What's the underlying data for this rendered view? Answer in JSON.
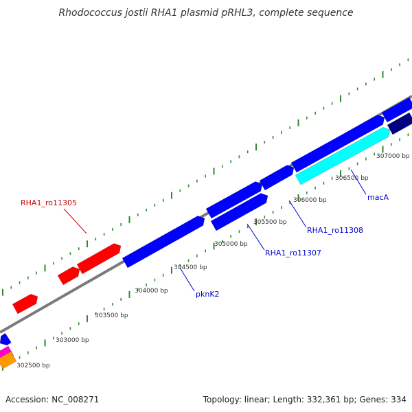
{
  "title": "Rhodococcus jostii RHA1 plasmid pRHL3, complete sequence",
  "footer": {
    "accession": "Accession: NC_008271",
    "summary": "Topology: linear; Length: 332,361 bp; Genes: 334"
  },
  "colors": {
    "backbone": "#7a7a7a",
    "tick": "#2e8b2e",
    "forward_gene": "#ff0000",
    "reverse_gene": "#0000ff",
    "highlight_gene": "#00ffff",
    "dark_gene": "#000080",
    "magenta_gene": "#ff00cc",
    "orange_gene": "#ff9900",
    "red_label": "#cc0000",
    "blue_label": "#0000cc"
  },
  "ticks": [
    {
      "label": "302500 bp"
    },
    {
      "label": "303000 bp"
    },
    {
      "label": "303500 bp"
    },
    {
      "label": "304000 bp"
    },
    {
      "label": "304500 bp"
    },
    {
      "label": "305000 bp"
    },
    {
      "label": "305500 bp"
    },
    {
      "label": "306000 bp"
    },
    {
      "label": "306500 bp"
    },
    {
      "label": "307000 bp"
    }
  ],
  "gene_labels": [
    {
      "name": "RHA1_ro11305",
      "color": "red"
    },
    {
      "name": "pknK2",
      "color": "blue"
    },
    {
      "name": "RHA1_ro11307",
      "color": "blue"
    },
    {
      "name": "RHA1_ro11308",
      "color": "blue"
    },
    {
      "name": "macA",
      "color": "blue"
    }
  ]
}
